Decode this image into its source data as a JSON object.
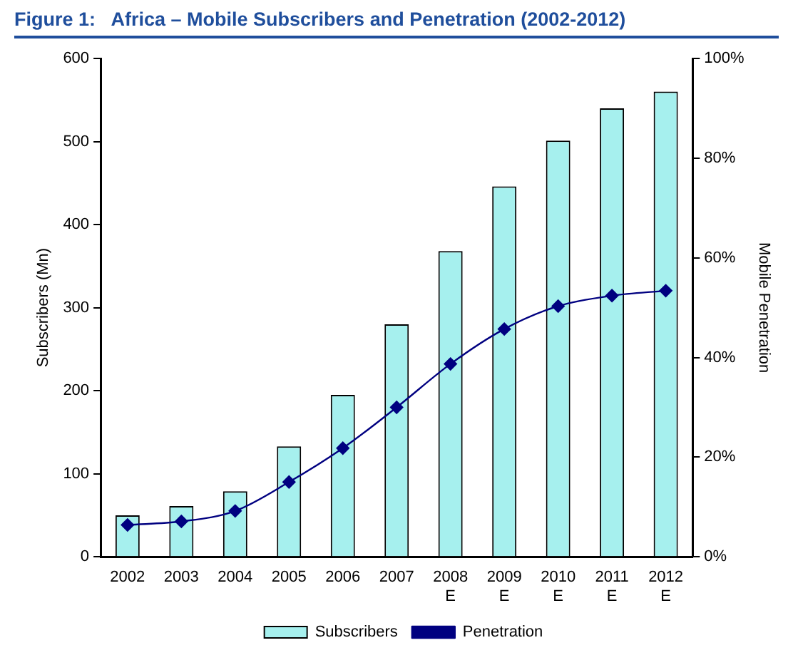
{
  "chart_data": {
    "type": "bar",
    "title": "Figure 1:   Africa – Mobile Subscribers and Penetration (2002-2012)",
    "ylabel": "Subscribers (Mn)",
    "y2label": "Mobile Penetration",
    "categories": [
      "2002",
      "2003",
      "2004",
      "2005",
      "2006",
      "2007",
      "2008\nE",
      "2009\nE",
      "2010\nE",
      "2011\nE",
      "2012\nE"
    ],
    "series": [
      {
        "name": "Subscribers",
        "color": "#a6f0ee",
        "values": [
          50,
          61,
          79,
          133,
          195,
          280,
          368,
          446,
          501,
          540,
          560
        ]
      },
      {
        "name": "Penetration",
        "type": "line",
        "axis": "y2",
        "color": "#000080",
        "values": [
          6.4,
          7.1,
          9.2,
          15,
          21.8,
          30,
          38.7,
          45.7,
          50.3,
          52.4,
          53.4
        ]
      }
    ],
    "ylim": [
      0,
      600
    ],
    "yticks": [
      0,
      100,
      200,
      300,
      400,
      500,
      600
    ],
    "y2lim": [
      0,
      100
    ],
    "y2ticks": [
      {
        "value": 0,
        "label": "0%"
      },
      {
        "value": 20,
        "label": "20%"
      },
      {
        "value": 40,
        "label": "40%"
      },
      {
        "value": 60,
        "label": "60%"
      },
      {
        "value": 80,
        "label": "80%"
      },
      {
        "value": 100,
        "label": "100%"
      }
    ],
    "legend": "bottom",
    "grid": false,
    "marker": "diamond"
  }
}
